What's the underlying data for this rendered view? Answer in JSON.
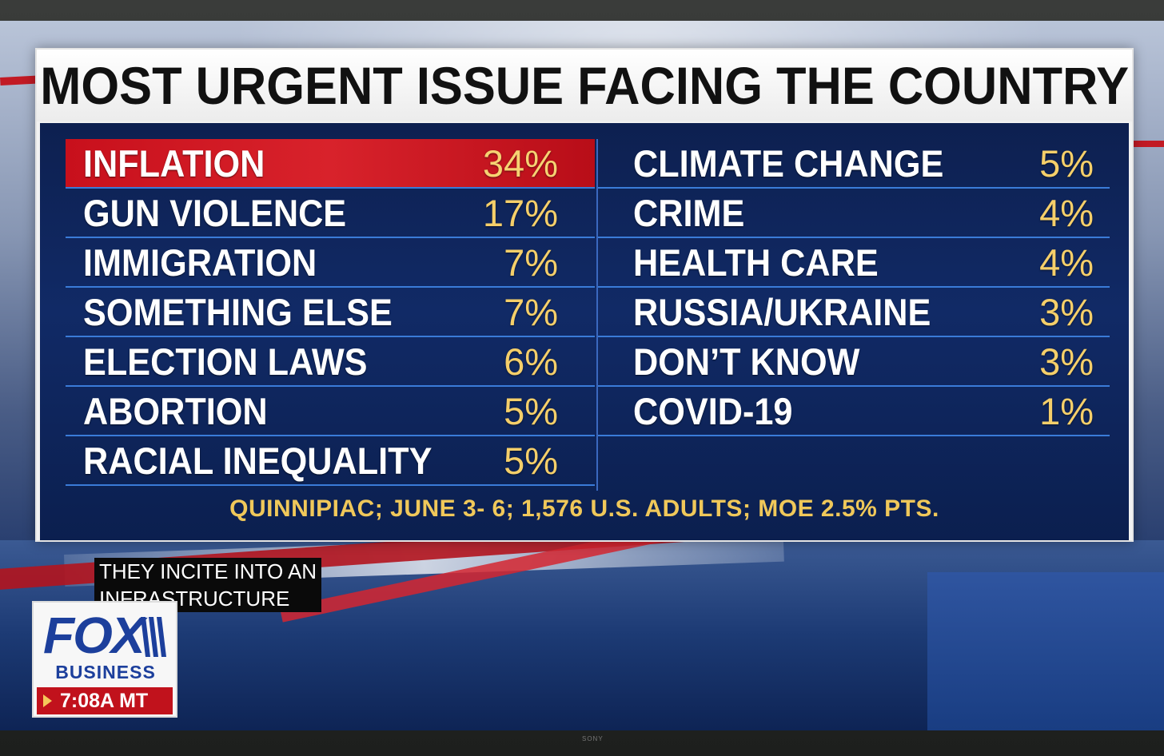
{
  "chart_data": {
    "type": "table",
    "title": "MOST URGENT ISSUE FACING THE COUNTRY",
    "left_column": [
      {
        "label": "INFLATION",
        "value": "34%",
        "highlight": true
      },
      {
        "label": "GUN VIOLENCE",
        "value": "17%"
      },
      {
        "label": "IMMIGRATION",
        "value": "7%"
      },
      {
        "label": "SOMETHING ELSE",
        "value": "7%"
      },
      {
        "label": "ELECTION LAWS",
        "value": "6%"
      },
      {
        "label": "ABORTION",
        "value": "5%"
      },
      {
        "label": "RACIAL INEQUALITY",
        "value": "5%"
      }
    ],
    "right_column": [
      {
        "label": "CLIMATE CHANGE",
        "value": "5%"
      },
      {
        "label": "CRIME",
        "value": "4%"
      },
      {
        "label": "HEALTH CARE",
        "value": "4%"
      },
      {
        "label": "RUSSIA/UKRAINE",
        "value": "3%"
      },
      {
        "label": "DON’T KNOW",
        "value": "3%"
      },
      {
        "label": "COVID-19",
        "value": "1%"
      }
    ],
    "source": "QUINNIPIAC; JUNE 3- 6; 1,576 U.S. ADULTS; MOE 2.5% PTS."
  },
  "caption": {
    "line1": "THEY INCITE INTO AN",
    "line2": "INFRASTRUCTURE"
  },
  "logo": {
    "word": "FOX",
    "sub": "BUSINESS",
    "time": "7:08A MT"
  },
  "tv_brand": "SONY",
  "colors": {
    "highlight_red": "#c8101c",
    "value_gold": "#f5cf6a",
    "table_navy": "#112a66",
    "fox_blue": "#1c3f9c"
  }
}
